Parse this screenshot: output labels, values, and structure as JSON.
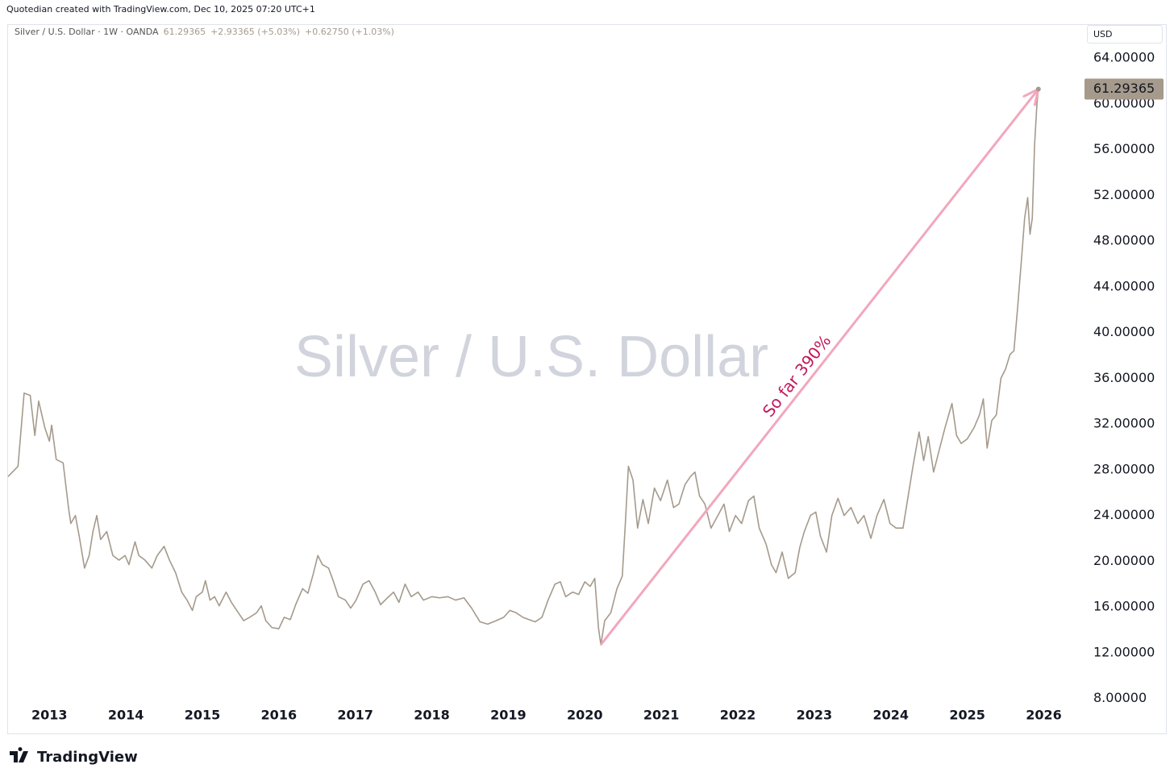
{
  "header": {
    "credit": "Quotedian created with TradingView.com, Dec 10, 2025 07:20 UTC+1",
    "symbol": "Silver / U.S. Dollar · 1W · OANDA",
    "price": "61.29365",
    "change": "+2.93365 (+5.03%)",
    "change2": "+0.62750 (+1.03%)",
    "currency": "USD",
    "watermark": "Silver / U.S. Dollar",
    "brand": "TradingView"
  },
  "chart_data": {
    "type": "line",
    "annotation": "So far 390%",
    "grid": false,
    "xlim": [
      2012.46,
      2026.48
    ],
    "xticks": [
      2013,
      2014,
      2015,
      2016,
      2017,
      2018,
      2019,
      2020,
      2021,
      2022,
      2023,
      2024,
      2025,
      2026
    ],
    "ylim": [
      7.9,
      66.9
    ],
    "yticks": [
      {
        "value": 8,
        "label": "8.00000"
      },
      {
        "value": 12,
        "label": "12.00000"
      },
      {
        "value": 16,
        "label": "16.00000"
      },
      {
        "value": 20,
        "label": "20.00000"
      },
      {
        "value": 24,
        "label": "24.00000"
      },
      {
        "value": 28,
        "label": "28.00000"
      },
      {
        "value": 32,
        "label": "32.00000"
      },
      {
        "value": 36,
        "label": "36.00000"
      },
      {
        "value": 40,
        "label": "40.00000"
      },
      {
        "value": 44,
        "label": "44.00000"
      },
      {
        "value": 48,
        "label": "48.00000"
      },
      {
        "value": 52,
        "label": "52.00000"
      },
      {
        "value": 56,
        "label": "56.00000"
      },
      {
        "value": 60,
        "label": "60.00000"
      },
      {
        "value": 64,
        "label": "64.00000"
      }
    ],
    "x": [
      2012.46,
      2012.59,
      2012.67,
      2012.75,
      2012.81,
      2012.86,
      2012.94,
      2013.0,
      2013.03,
      2013.09,
      2013.18,
      2013.25,
      2013.28,
      2013.34,
      2013.39,
      2013.46,
      2013.52,
      2013.57,
      2013.62,
      2013.67,
      2013.75,
      2013.83,
      2013.91,
      2013.99,
      2014.04,
      2014.12,
      2014.17,
      2014.25,
      2014.34,
      2014.41,
      2014.5,
      2014.57,
      2014.65,
      2014.73,
      2014.8,
      2014.87,
      2014.92,
      2015.0,
      2015.04,
      2015.1,
      2015.16,
      2015.22,
      2015.31,
      2015.38,
      2015.47,
      2015.54,
      2015.62,
      2015.71,
      2015.77,
      2015.83,
      2015.91,
      2016.0,
      2016.07,
      2016.15,
      2016.22,
      2016.31,
      2016.38,
      2016.45,
      2016.51,
      2016.57,
      2016.65,
      2016.71,
      2016.78,
      2016.87,
      2016.94,
      2017.01,
      2017.1,
      2017.18,
      2017.26,
      2017.33,
      2017.42,
      2017.5,
      2017.57,
      2017.65,
      2017.73,
      2017.82,
      2017.89,
      2018.0,
      2018.1,
      2018.21,
      2018.31,
      2018.42,
      2018.52,
      2018.63,
      2018.73,
      2018.84,
      2018.94,
      2019.02,
      2019.1,
      2019.19,
      2019.27,
      2019.35,
      2019.44,
      2019.52,
      2019.61,
      2019.68,
      2019.75,
      2019.84,
      2019.92,
      2020.0,
      2020.07,
      2020.13,
      2020.18,
      2020.21,
      2020.26,
      2020.34,
      2020.42,
      2020.49,
      2020.53,
      2020.57,
      2020.63,
      2020.69,
      2020.76,
      2020.83,
      2020.91,
      2020.99,
      2021.08,
      2021.16,
      2021.23,
      2021.31,
      2021.38,
      2021.44,
      2021.5,
      2021.57,
      2021.65,
      2021.74,
      2021.82,
      2021.89,
      2021.97,
      2022.05,
      2022.14,
      2022.21,
      2022.28,
      2022.37,
      2022.44,
      2022.5,
      2022.58,
      2022.66,
      2022.75,
      2022.81,
      2022.87,
      2022.95,
      2023.02,
      2023.08,
      2023.16,
      2023.23,
      2023.31,
      2023.39,
      2023.48,
      2023.57,
      2023.65,
      2023.74,
      2023.82,
      2023.91,
      2023.99,
      2024.07,
      2024.16,
      2024.22,
      2024.29,
      2024.37,
      2024.43,
      2024.49,
      2024.56,
      2024.64,
      2024.71,
      2024.8,
      2024.86,
      2024.92,
      2025.0,
      2025.09,
      2025.16,
      2025.21,
      2025.26,
      2025.32,
      2025.38,
      2025.44,
      2025.5,
      2025.56,
      2025.61,
      2025.66,
      2025.71,
      2025.75,
      2025.79,
      2025.82,
      2025.85,
      2025.88,
      2025.91,
      2025.93
    ],
    "series": [
      {
        "color": "#a59a8c",
        "values": [
          27.4,
          28.3,
          34.7,
          34.5,
          31.0,
          34.0,
          31.7,
          30.5,
          31.9,
          28.9,
          28.6,
          24.7,
          23.3,
          24.0,
          22.2,
          19.4,
          20.5,
          22.6,
          24.0,
          21.9,
          22.6,
          20.5,
          20.1,
          20.5,
          19.7,
          21.7,
          20.5,
          20.1,
          19.4,
          20.5,
          21.3,
          20.1,
          19.0,
          17.3,
          16.6,
          15.7,
          16.9,
          17.3,
          18.3,
          16.6,
          16.9,
          16.1,
          17.3,
          16.4,
          15.5,
          14.8,
          15.1,
          15.5,
          16.1,
          14.8,
          14.2,
          14.1,
          15.1,
          14.9,
          16.2,
          17.6,
          17.2,
          18.9,
          20.5,
          19.7,
          19.4,
          18.3,
          16.9,
          16.6,
          15.9,
          16.6,
          18.0,
          18.3,
          17.3,
          16.2,
          16.8,
          17.3,
          16.4,
          18.0,
          16.9,
          17.3,
          16.6,
          16.9,
          16.8,
          16.9,
          16.6,
          16.8,
          15.9,
          14.7,
          14.5,
          14.8,
          15.1,
          15.7,
          15.5,
          15.1,
          14.9,
          14.7,
          15.1,
          16.6,
          18.0,
          18.2,
          16.9,
          17.3,
          17.1,
          18.2,
          17.8,
          18.5,
          14.1,
          12.7,
          14.8,
          15.5,
          17.6,
          18.7,
          23.3,
          28.3,
          27.1,
          22.9,
          25.4,
          23.3,
          26.4,
          25.3,
          27.1,
          24.7,
          25.0,
          26.7,
          27.4,
          27.8,
          25.7,
          25.0,
          22.9,
          24.0,
          25.0,
          22.6,
          24.0,
          23.3,
          25.3,
          25.7,
          22.9,
          21.5,
          19.7,
          19.0,
          20.8,
          18.5,
          19.0,
          21.2,
          22.6,
          24.0,
          24.3,
          22.2,
          20.8,
          24.0,
          25.5,
          24.0,
          24.7,
          23.3,
          24.0,
          22.0,
          24.0,
          25.4,
          23.3,
          22.9,
          22.9,
          25.4,
          28.3,
          31.3,
          28.8,
          30.9,
          27.8,
          29.9,
          31.7,
          33.8,
          31.0,
          30.3,
          30.7,
          31.7,
          32.8,
          34.2,
          29.9,
          32.3,
          32.8,
          36.0,
          36.8,
          38.1,
          38.4,
          42.3,
          46.5,
          50.0,
          51.8,
          48.6,
          50.0,
          56.4,
          59.9,
          61.29365
        ]
      }
    ]
  }
}
